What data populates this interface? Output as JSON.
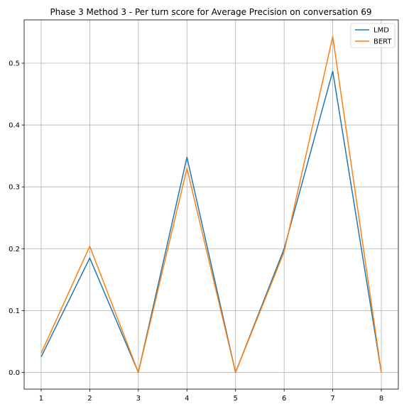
{
  "chart_data": {
    "type": "line",
    "title": "Phase 3 Method 3 - Per turn score for Average Precision on conversation 69",
    "xlabel": "",
    "ylabel": "",
    "x": [
      1,
      2,
      3,
      4,
      5,
      6,
      7,
      8
    ],
    "xlim": [
      0.65,
      8.35
    ],
    "ylim": [
      -0.027,
      0.57
    ],
    "x_ticks": [
      "1",
      "2",
      "3",
      "4",
      "5",
      "6",
      "7",
      "8"
    ],
    "y_ticks": [
      "0.0",
      "0.1",
      "0.2",
      "0.3",
      "0.4",
      "0.5"
    ],
    "grid": true,
    "legend_position": "top-right",
    "series": [
      {
        "name": "LMD",
        "color": "#1f77b4",
        "values": [
          0.025,
          0.185,
          0.0,
          0.348,
          0.0,
          0.2,
          0.487,
          0.0
        ]
      },
      {
        "name": "BERT",
        "color": "#ff7f0e",
        "values": [
          0.031,
          0.204,
          0.0,
          0.33,
          0.0,
          0.195,
          0.543,
          0.0
        ]
      }
    ]
  }
}
